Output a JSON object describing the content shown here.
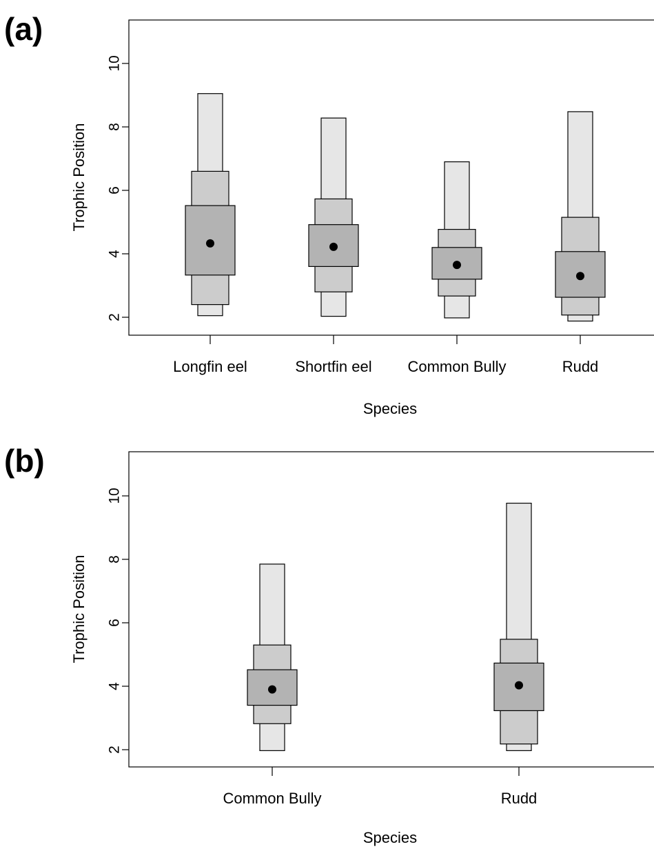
{
  "chart_data": [
    {
      "panel": "(a)",
      "type": "box",
      "xlabel": "Species",
      "ylabel": "Trophic Position",
      "ylim": [
        1.5,
        11.4
      ],
      "yticks": [
        "2",
        "4",
        "6",
        "8",
        "10"
      ],
      "categories": [
        "Longfin eel",
        "Shortfin eel",
        "Common Bully",
        "Rudd"
      ],
      "series": [
        {
          "category": "Longfin eel",
          "mode": 4.33,
          "interval_50": [
            3.33,
            5.52
          ],
          "interval_75": [
            2.4,
            6.6
          ],
          "interval_95": [
            2.05,
            9.05
          ]
        },
        {
          "category": "Shortfin eel",
          "mode": 4.22,
          "interval_50": [
            3.6,
            4.92
          ],
          "interval_75": [
            2.8,
            5.73
          ],
          "interval_95": [
            2.03,
            8.28
          ]
        },
        {
          "category": "Common Bully",
          "mode": 3.65,
          "interval_50": [
            3.2,
            4.2
          ],
          "interval_75": [
            2.67,
            4.77
          ],
          "interval_95": [
            1.98,
            6.9
          ]
        },
        {
          "category": "Rudd",
          "mode": 3.3,
          "interval_50": [
            2.63,
            4.07
          ],
          "interval_75": [
            2.07,
            5.15
          ],
          "interval_95": [
            1.88,
            8.48
          ]
        }
      ],
      "colors": {
        "interval_50": "#b3b3b3",
        "interval_75": "#cccccc",
        "interval_95": "#e6e6e6",
        "mode": "#000000"
      }
    },
    {
      "panel": "(b)",
      "type": "box",
      "xlabel": "Species",
      "ylabel": "Trophic Position",
      "ylim": [
        1.5,
        11.4
      ],
      "yticks": [
        "2",
        "4",
        "6",
        "8",
        "10"
      ],
      "categories": [
        "Common Bully",
        "Rudd"
      ],
      "series": [
        {
          "category": "Common Bully",
          "mode": 3.9,
          "interval_50": [
            3.4,
            4.52
          ],
          "interval_75": [
            2.82,
            5.3
          ],
          "interval_95": [
            1.97,
            7.85
          ]
        },
        {
          "category": "Rudd",
          "mode": 4.03,
          "interval_50": [
            3.23,
            4.73
          ],
          "interval_75": [
            2.18,
            5.48
          ],
          "interval_95": [
            1.97,
            9.77
          ]
        }
      ],
      "colors": {
        "interval_50": "#b3b3b3",
        "interval_75": "#cccccc",
        "interval_95": "#e6e6e6",
        "mode": "#000000"
      }
    }
  ]
}
